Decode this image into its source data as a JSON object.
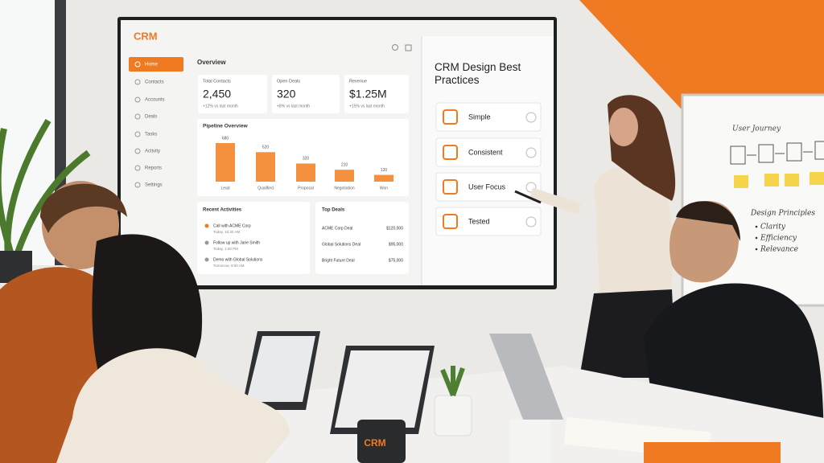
{
  "screen": {
    "logo": "CRM",
    "nav": [
      "Home",
      "Contacts",
      "Accounts",
      "Deals",
      "Tasks",
      "Activity",
      "Reports",
      "Settings"
    ],
    "overview_title": "Overview",
    "kpis": [
      {
        "label": "Total Contacts",
        "value": "2,450",
        "change": "+12% vs last month"
      },
      {
        "label": "Open Deals",
        "value": "320",
        "change": "+8% vs last month"
      },
      {
        "label": "Revenue",
        "value": "$1.25M",
        "change": "+15% vs last month"
      }
    ],
    "pipeline": {
      "title": "Pipeline Overview",
      "categories": [
        "Lead",
        "Qualified",
        "Proposal",
        "Negotiation",
        "Won"
      ],
      "values": [
        680,
        520,
        320,
        210,
        120
      ],
      "color": "#f5913e"
    },
    "activities": {
      "title": "Recent Activities",
      "items": [
        {
          "text": "Call with ACME Corp",
          "time": "Today, 10:30 AM"
        },
        {
          "text": "Follow up with Jane Smith",
          "time": "Today, 1:00 PM"
        },
        {
          "text": "Demo with Global Solutions",
          "time": "Tomorrow, 9:00 AM"
        }
      ]
    },
    "deals": {
      "title": "Top Deals",
      "rows": [
        [
          "ACME Corp Deal",
          "$120,000"
        ],
        [
          "Global Solutions Deal",
          "$95,000"
        ],
        [
          "Bright Future Deal",
          "$75,000"
        ]
      ]
    },
    "practices": {
      "title": "CRM Design Best Practices",
      "items": [
        "Simple",
        "Consistent",
        "User Focus",
        "Tested"
      ]
    }
  },
  "whiteboard": {
    "title": "User Journey",
    "subtitle": "Design Principles",
    "items": [
      "Clarity",
      "Efficiency",
      "Relevance"
    ]
  },
  "mug": "CRM"
}
